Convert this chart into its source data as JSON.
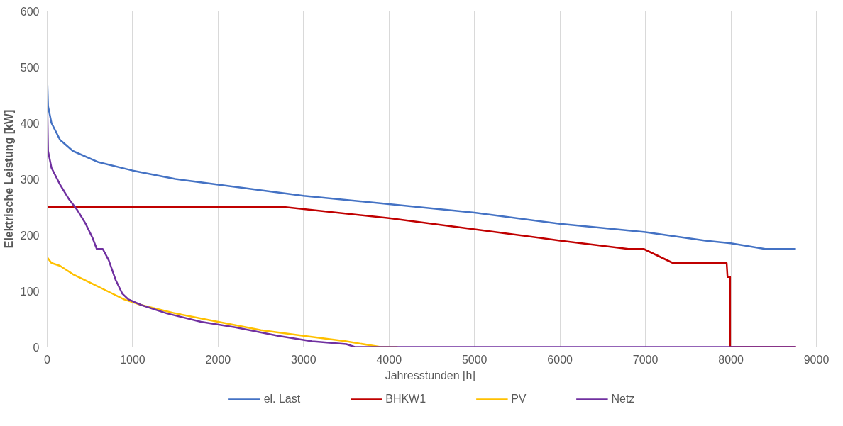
{
  "chart_data": {
    "type": "line",
    "xlabel": "Jahresstunden  [h]",
    "ylabel": "Elektrische Leistung [kW]",
    "xlim": [
      0,
      9000
    ],
    "ylim": [
      0,
      600
    ],
    "xticks": [
      0,
      1000,
      2000,
      3000,
      4000,
      5000,
      6000,
      7000,
      8000,
      9000
    ],
    "yticks": [
      0,
      100,
      200,
      300,
      400,
      500,
      600
    ],
    "grid": true,
    "legend": "bottom",
    "marker": "none",
    "line_style": "solid",
    "series": [
      {
        "name": "el. Last",
        "color": "#4472c4",
        "x": [
          0,
          10,
          50,
          150,
          300,
          600,
          1000,
          1500,
          2000,
          3000,
          4000,
          5000,
          6000,
          7000,
          7700,
          8000,
          8400,
          8760
        ],
        "values": [
          480,
          430,
          400,
          370,
          350,
          330,
          315,
          300,
          290,
          270,
          255,
          240,
          220,
          205,
          190,
          185,
          175,
          175
        ]
      },
      {
        "name": "BHKW1",
        "color": "#c00000",
        "x": [
          0,
          2770,
          4000,
          5000,
          6000,
          6800,
          6980,
          7320,
          7950,
          7960,
          7990,
          7990,
          8760
        ],
        "values": [
          250,
          250,
          230,
          210,
          190,
          175,
          175,
          150,
          150,
          125,
          125,
          0,
          0
        ]
      },
      {
        "name": "PV",
        "color": "#ffc000",
        "x": [
          0,
          50,
          150,
          300,
          500,
          700,
          900,
          1100,
          1500,
          2000,
          2500,
          3000,
          3500,
          3900,
          4100
        ],
        "values": [
          160,
          150,
          145,
          130,
          115,
          100,
          85,
          75,
          60,
          45,
          30,
          20,
          10,
          0,
          0
        ]
      },
      {
        "name": "Netz",
        "color": "#7030a0",
        "x": [
          0,
          10,
          50,
          150,
          250,
          350,
          450,
          530,
          580,
          650,
          720,
          800,
          880,
          950,
          1100,
          1400,
          1800,
          2200,
          2700,
          3100,
          3500,
          3600,
          8760
        ],
        "values": [
          440,
          350,
          320,
          290,
          265,
          245,
          220,
          195,
          175,
          175,
          155,
          120,
          95,
          85,
          75,
          60,
          45,
          35,
          20,
          10,
          5,
          0,
          0
        ]
      }
    ]
  }
}
